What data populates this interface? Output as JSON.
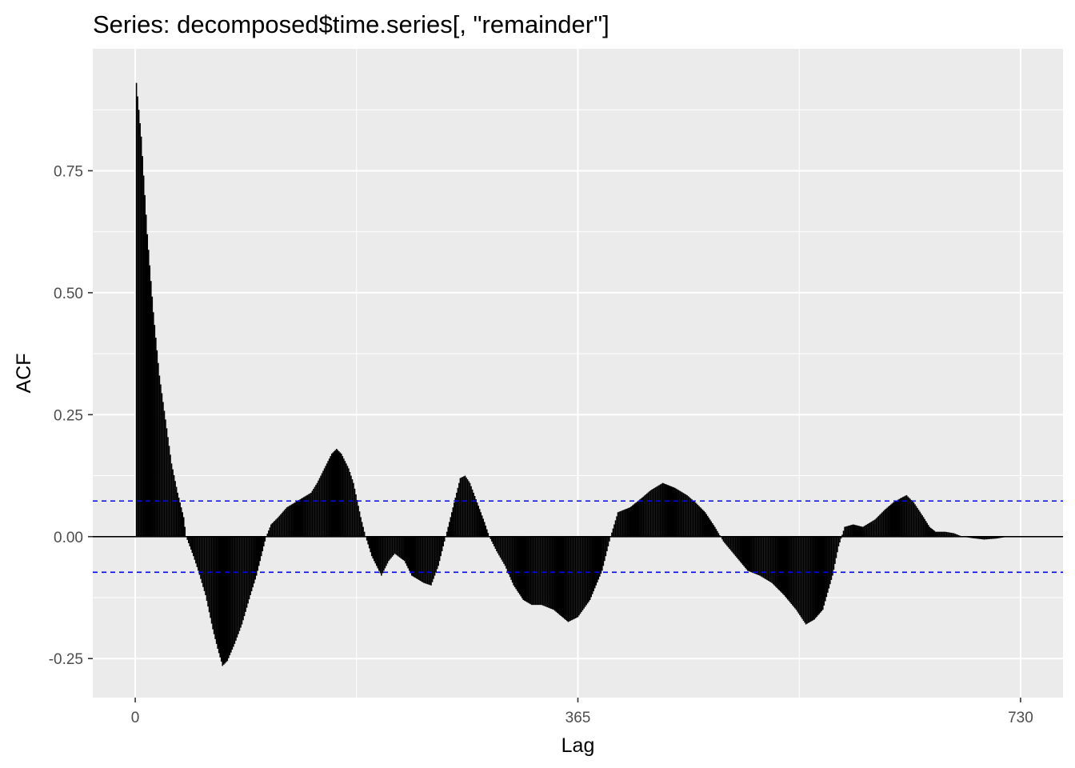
{
  "colors": {
    "panel_background": "#EBEBEB",
    "grid_line": "#FFFFFF",
    "bar_color": "#000000",
    "zero_line": "#000000",
    "ci_line": "#0000FF",
    "tick_text": "#4D4D4D",
    "text": "#000000"
  },
  "chart_data": {
    "type": "bar",
    "title": "Series: decomposed$time.series[, \"remainder\"]",
    "xlabel": "Lag",
    "ylabel": "ACF",
    "x_ticks": [
      0,
      365,
      730
    ],
    "x_tick_labels": [
      "0",
      "365",
      "730"
    ],
    "y_ticks": [
      -0.25,
      0,
      0.25,
      0.5,
      0.75
    ],
    "y_tick_labels": [
      "-0.25",
      "0.00",
      "0.25",
      "0.50",
      "0.75"
    ],
    "xlim": [
      -35,
      765
    ],
    "ylim": [
      -0.33,
      1.0
    ],
    "grid": true,
    "ci_bounds": [
      0.073,
      -0.073
    ],
    "lag_range": [
      1,
      720
    ],
    "acf_keypoints": [
      [
        1,
        0.93
      ],
      [
        5,
        0.82
      ],
      [
        10,
        0.62
      ],
      [
        15,
        0.46
      ],
      [
        20,
        0.33
      ],
      [
        25,
        0.24
      ],
      [
        30,
        0.15
      ],
      [
        35,
        0.09
      ],
      [
        40,
        0.04
      ],
      [
        42,
        0.0
      ],
      [
        48,
        -0.04
      ],
      [
        52,
        -0.07
      ],
      [
        58,
        -0.12
      ],
      [
        64,
        -0.19
      ],
      [
        68,
        -0.23
      ],
      [
        72,
        -0.265
      ],
      [
        76,
        -0.255
      ],
      [
        82,
        -0.22
      ],
      [
        88,
        -0.18
      ],
      [
        95,
        -0.12
      ],
      [
        100,
        -0.08
      ],
      [
        105,
        -0.03
      ],
      [
        108,
        0.0
      ],
      [
        112,
        0.025
      ],
      [
        118,
        0.04
      ],
      [
        125,
        0.06
      ],
      [
        135,
        0.075
      ],
      [
        145,
        0.09
      ],
      [
        150,
        0.11
      ],
      [
        156,
        0.14
      ],
      [
        162,
        0.17
      ],
      [
        166,
        0.18
      ],
      [
        170,
        0.17
      ],
      [
        176,
        0.14
      ],
      [
        180,
        0.11
      ],
      [
        186,
        0.04
      ],
      [
        190,
        0.0
      ],
      [
        195,
        -0.04
      ],
      [
        203,
        -0.08
      ],
      [
        209,
        -0.05
      ],
      [
        214,
        -0.035
      ],
      [
        222,
        -0.05
      ],
      [
        228,
        -0.08
      ],
      [
        238,
        -0.095
      ],
      [
        244,
        -0.1
      ],
      [
        250,
        -0.06
      ],
      [
        256,
        0.0
      ],
      [
        262,
        0.06
      ],
      [
        268,
        0.12
      ],
      [
        272,
        0.125
      ],
      [
        276,
        0.11
      ],
      [
        282,
        0.07
      ],
      [
        288,
        0.03
      ],
      [
        292,
        0.0
      ],
      [
        298,
        -0.03
      ],
      [
        305,
        -0.06
      ],
      [
        312,
        -0.1
      ],
      [
        320,
        -0.13
      ],
      [
        327,
        -0.14
      ],
      [
        335,
        -0.14
      ],
      [
        345,
        -0.15
      ],
      [
        357,
        -0.175
      ],
      [
        365,
        -0.165
      ],
      [
        375,
        -0.13
      ],
      [
        385,
        -0.07
      ],
      [
        392,
        0.0
      ],
      [
        398,
        0.05
      ],
      [
        408,
        0.06
      ],
      [
        418,
        0.08
      ],
      [
        425,
        0.095
      ],
      [
        435,
        0.11
      ],
      [
        445,
        0.1
      ],
      [
        455,
        0.085
      ],
      [
        462,
        0.07
      ],
      [
        470,
        0.05
      ],
      [
        478,
        0.02
      ],
      [
        485,
        -0.01
      ],
      [
        495,
        -0.04
      ],
      [
        505,
        -0.07
      ],
      [
        515,
        -0.08
      ],
      [
        525,
        -0.095
      ],
      [
        535,
        -0.12
      ],
      [
        545,
        -0.15
      ],
      [
        553,
        -0.18
      ],
      [
        560,
        -0.17
      ],
      [
        567,
        -0.15
      ],
      [
        575,
        -0.08
      ],
      [
        580,
        -0.02
      ],
      [
        585,
        0.02
      ],
      [
        592,
        0.025
      ],
      [
        600,
        0.02
      ],
      [
        610,
        0.035
      ],
      [
        618,
        0.055
      ],
      [
        625,
        0.07
      ],
      [
        632,
        0.08
      ],
      [
        636,
        0.085
      ],
      [
        642,
        0.07
      ],
      [
        650,
        0.04
      ],
      [
        655,
        0.02
      ],
      [
        660,
        0.01
      ],
      [
        668,
        0.01
      ],
      [
        675,
        0.007
      ],
      [
        682,
        0.0
      ],
      [
        690,
        -0.003
      ],
      [
        700,
        -0.006
      ],
      [
        710,
        -0.004
      ],
      [
        720,
        0.0
      ]
    ]
  }
}
